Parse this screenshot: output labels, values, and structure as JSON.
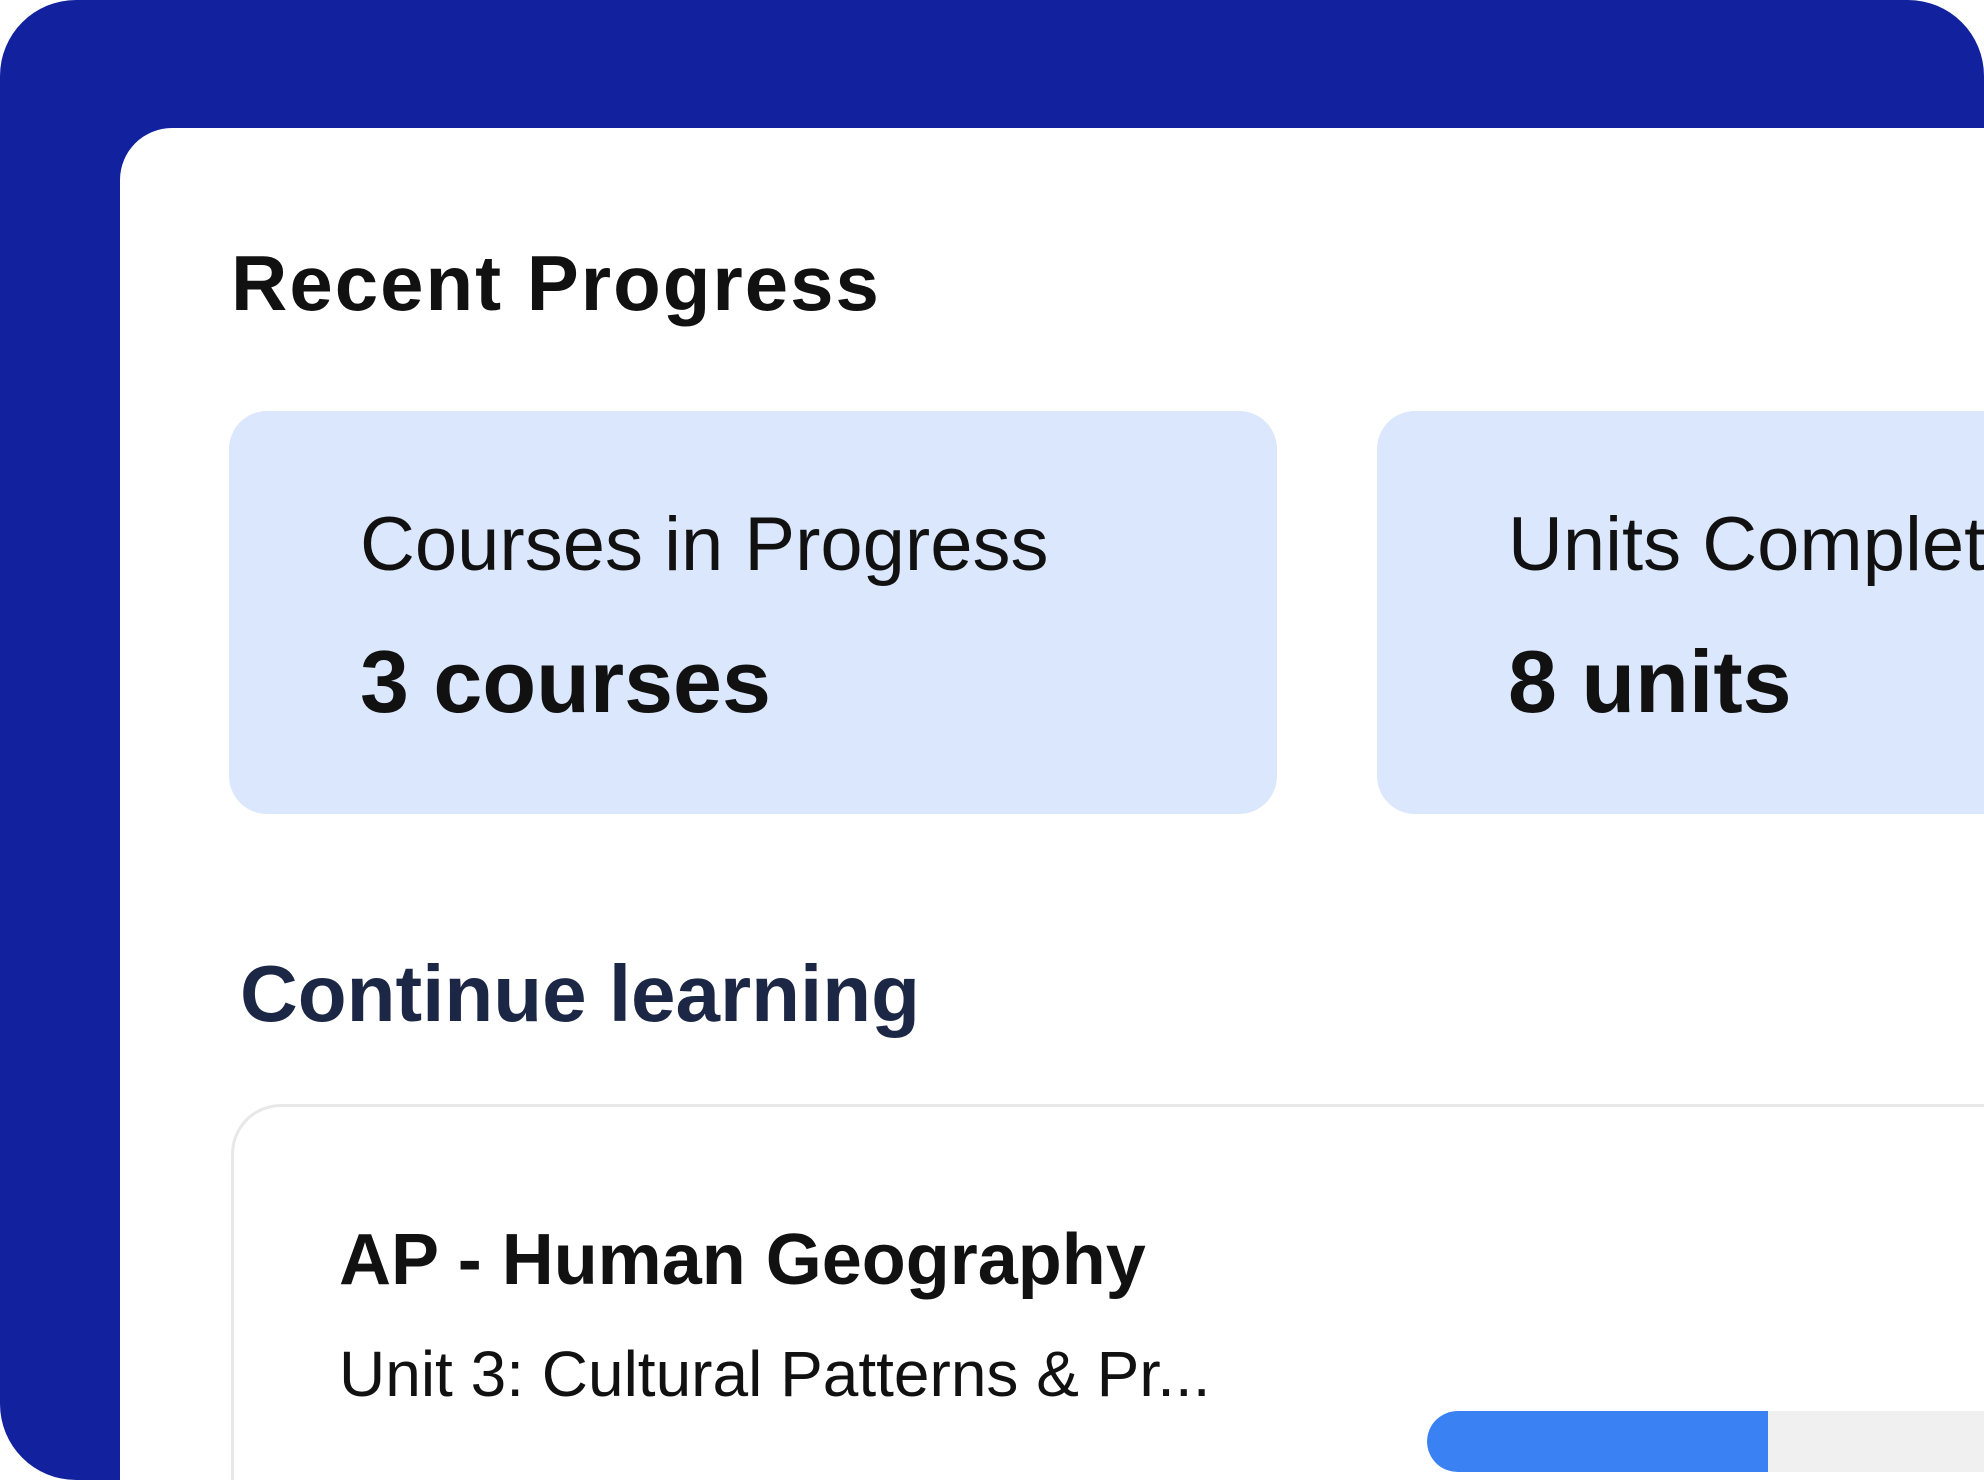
{
  "colors": {
    "frame": "#12229e",
    "stat_card": "#dbe7fc",
    "progress_fill": "#3a82f4",
    "progress_track": "#f0f0f0"
  },
  "recent_progress": {
    "title": "Recent Progress",
    "stats": [
      {
        "label": "Courses in Progress",
        "value": "3 courses"
      },
      {
        "label": "Units Complet",
        "value": "8 units"
      }
    ]
  },
  "continue_learning": {
    "title": "Continue learning",
    "courses": [
      {
        "title": "AP - Human Geography",
        "subtitle": "Unit 3: Cultural Patterns & Pr...",
        "progress_percent": 35
      }
    ]
  }
}
